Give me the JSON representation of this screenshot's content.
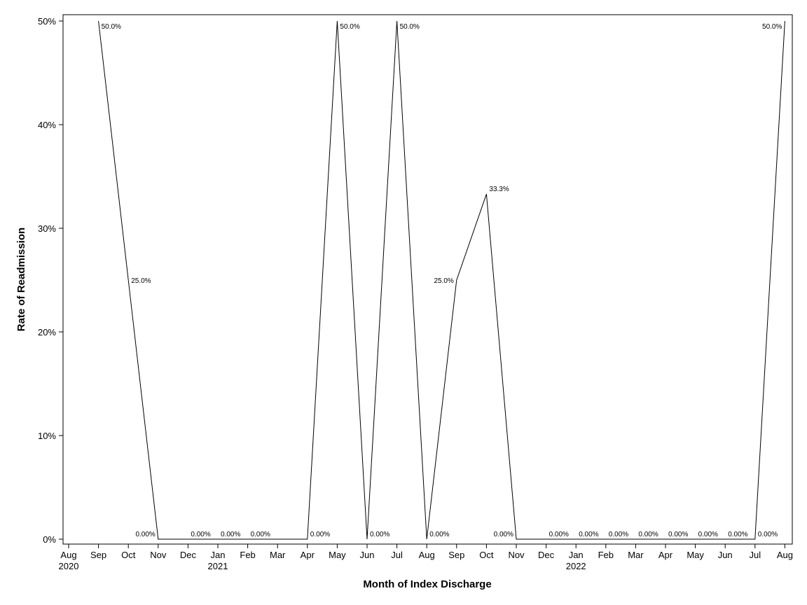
{
  "chart_data": {
    "type": "line",
    "title": "",
    "xlabel": "Month of Index Discharge",
    "ylabel": "Rate of Readmission",
    "ylim": [
      0,
      50
    ],
    "yticks": [
      "0%",
      "10%",
      "20%",
      "30%",
      "40%",
      "50%"
    ],
    "xticks": [
      {
        "month": "Aug",
        "year": "2020"
      },
      {
        "month": "Sep",
        "year": ""
      },
      {
        "month": "Oct",
        "year": ""
      },
      {
        "month": "Nov",
        "year": ""
      },
      {
        "month": "Dec",
        "year": ""
      },
      {
        "month": "Jan",
        "year": "2021"
      },
      {
        "month": "Feb",
        "year": ""
      },
      {
        "month": "Mar",
        "year": ""
      },
      {
        "month": "Apr",
        "year": ""
      },
      {
        "month": "May",
        "year": ""
      },
      {
        "month": "Jun",
        "year": ""
      },
      {
        "month": "Jul",
        "year": ""
      },
      {
        "month": "Aug",
        "year": ""
      },
      {
        "month": "Sep",
        "year": ""
      },
      {
        "month": "Oct",
        "year": ""
      },
      {
        "month": "Nov",
        "year": ""
      },
      {
        "month": "Dec",
        "year": ""
      },
      {
        "month": "Jan",
        "year": "2022"
      },
      {
        "month": "Feb",
        "year": ""
      },
      {
        "month": "Mar",
        "year": ""
      },
      {
        "month": "Apr",
        "year": ""
      },
      {
        "month": "May",
        "year": ""
      },
      {
        "month": "Jun",
        "year": ""
      },
      {
        "month": "Jul",
        "year": ""
      },
      {
        "month": "Aug",
        "year": ""
      }
    ],
    "series": [
      {
        "points": [
          {
            "x": "2020-09",
            "y": 50.0,
            "label": "50.0%"
          },
          {
            "x": "2020-10",
            "y": 25.0,
            "label": "25.0%"
          },
          {
            "x": "2020-11",
            "y": 0,
            "label": "0.00%"
          },
          {
            "x": "2020-12",
            "y": 0,
            "label": "0.00%"
          },
          {
            "x": "2021-01",
            "y": 0,
            "label": "0.00%"
          },
          {
            "x": "2021-02",
            "y": 0,
            "label": "0.00%"
          },
          {
            "x": "2021-04",
            "y": 0,
            "label": "0.00%"
          },
          {
            "x": "2021-05",
            "y": 50.0,
            "label": "50.0%"
          },
          {
            "x": "2021-06",
            "y": 0,
            "label": "0.00%"
          },
          {
            "x": "2021-07",
            "y": 50.0,
            "label": "50.0%"
          },
          {
            "x": "2021-08",
            "y": 0,
            "label": "0.00%"
          },
          {
            "x": "2021-09",
            "y": 25.0,
            "label": "25.0%"
          },
          {
            "x": "2021-10",
            "y": 33.3,
            "label": "33.3%"
          },
          {
            "x": "2021-11",
            "y": 0,
            "label": "0.00%"
          },
          {
            "x": "2021-12",
            "y": 0,
            "label": "0.00%"
          },
          {
            "x": "2022-01",
            "y": 0,
            "label": "0.00%"
          },
          {
            "x": "2022-02",
            "y": 0,
            "label": "0.00%"
          },
          {
            "x": "2022-03",
            "y": 0,
            "label": "0.00%"
          },
          {
            "x": "2022-04",
            "y": 0,
            "label": "0.00%"
          },
          {
            "x": "2022-05",
            "y": 0,
            "label": "0.00%"
          },
          {
            "x": "2022-06",
            "y": 0,
            "label": "0.00%"
          },
          {
            "x": "2022-07",
            "y": 0,
            "label": "0.00%"
          },
          {
            "x": "2022-08",
            "y": 50.0,
            "label": "50.0%"
          }
        ]
      }
    ],
    "grid": false,
    "legend": "none",
    "line_color": "#000000"
  }
}
